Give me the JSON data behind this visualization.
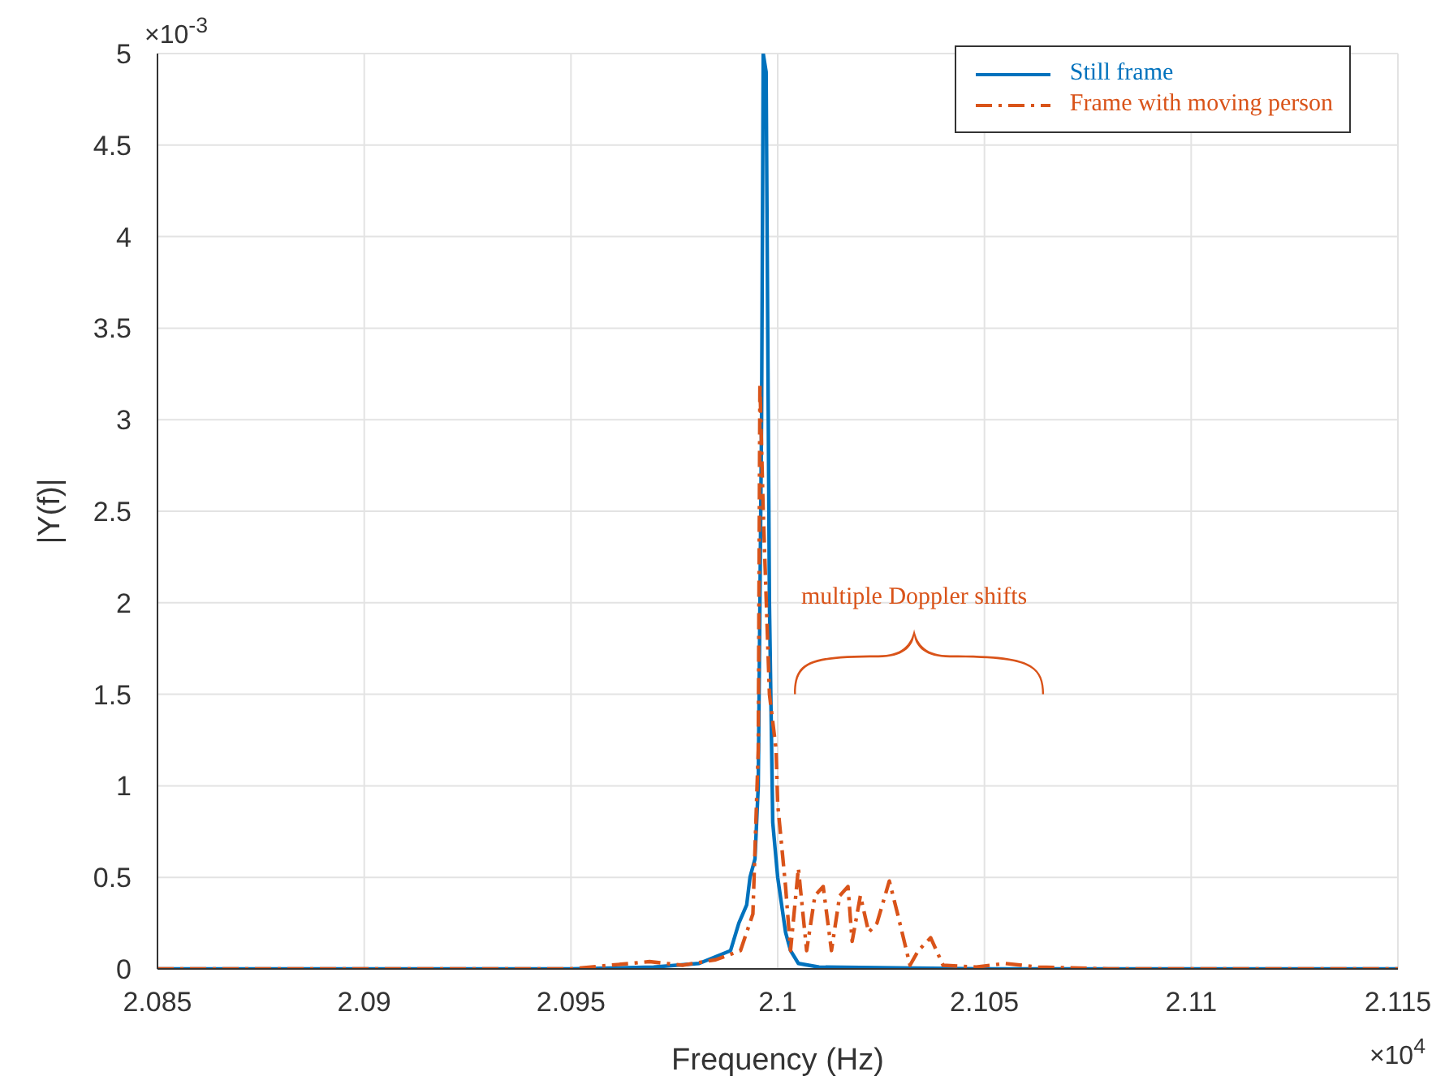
{
  "chart_data": {
    "type": "line",
    "xlabel": "Frequency (Hz)",
    "ylabel": "|Y(f)|",
    "annotations": [
      "multiple Doppler shifts",
      "×10$^{-3}$",
      "×10$^{4}$"
    ],
    "xlim": [
      2.085,
      2.115
    ],
    "xticks": [
      2.085,
      2.09,
      2.095,
      2.1,
      2.105,
      2.11,
      2.115
    ],
    "ylim": [
      0,
      5
    ],
    "yticks": [
      0,
      0.5,
      1,
      1.5,
      2,
      2.5,
      3,
      3.5,
      4,
      4.5,
      5
    ],
    "grid": true,
    "legend": "top right",
    "marker": "none",
    "series": [
      {
        "name": "Still frame",
        "color": "#0072bd",
        "line_style": "solid",
        "x": [
          2.085,
          2.095,
          2.097,
          2.0981,
          2.09886,
          2.09906,
          2.09925,
          2.09933,
          2.09945,
          2.09953,
          2.09961,
          2.09965,
          2.09972,
          2.0998,
          2.09984,
          2.09988,
          2.1,
          2.10019,
          2.10031,
          2.1005,
          2.101,
          2.105,
          2.115
        ],
        "values": [
          0,
          0,
          0.01,
          0.03,
          0.1,
          0.25,
          0.35,
          0.5,
          0.6,
          1.0,
          3.0,
          5.0,
          4.9,
          2.0,
          1.4,
          0.8,
          0.5,
          0.2,
          0.1,
          0.03,
          0.01,
          0,
          0
        ]
      },
      {
        "name": "Frame with moving person",
        "color": "#d95319",
        "line_style": "dashdot",
        "x": [
          2.085,
          2.095,
          2.0969,
          2.0977,
          2.0985,
          2.0991,
          2.0994,
          2.09953,
          2.09957,
          2.09965,
          2.0998,
          2.09996,
          2.1,
          2.10019,
          2.10031,
          2.1005,
          2.1007,
          2.1009,
          2.1011,
          2.1013,
          2.1015,
          2.1017,
          2.1018,
          2.102,
          2.1022,
          2.1024,
          2.1027,
          2.1029,
          2.1032,
          2.1034,
          2.1037,
          2.104,
          2.1048,
          2.1055,
          2.1063,
          2.108,
          2.115
        ],
        "values": [
          0,
          0,
          0.04,
          0.02,
          0.05,
          0.1,
          0.3,
          1.2,
          3.2,
          2.5,
          1.5,
          1.2,
          0.9,
          0.45,
          0.1,
          0.55,
          0.1,
          0.4,
          0.45,
          0.1,
          0.4,
          0.45,
          0.15,
          0.4,
          0.2,
          0.25,
          0.48,
          0.3,
          0.02,
          0.1,
          0.17,
          0.02,
          0.01,
          0.03,
          0.01,
          0,
          0
        ]
      }
    ]
  }
}
